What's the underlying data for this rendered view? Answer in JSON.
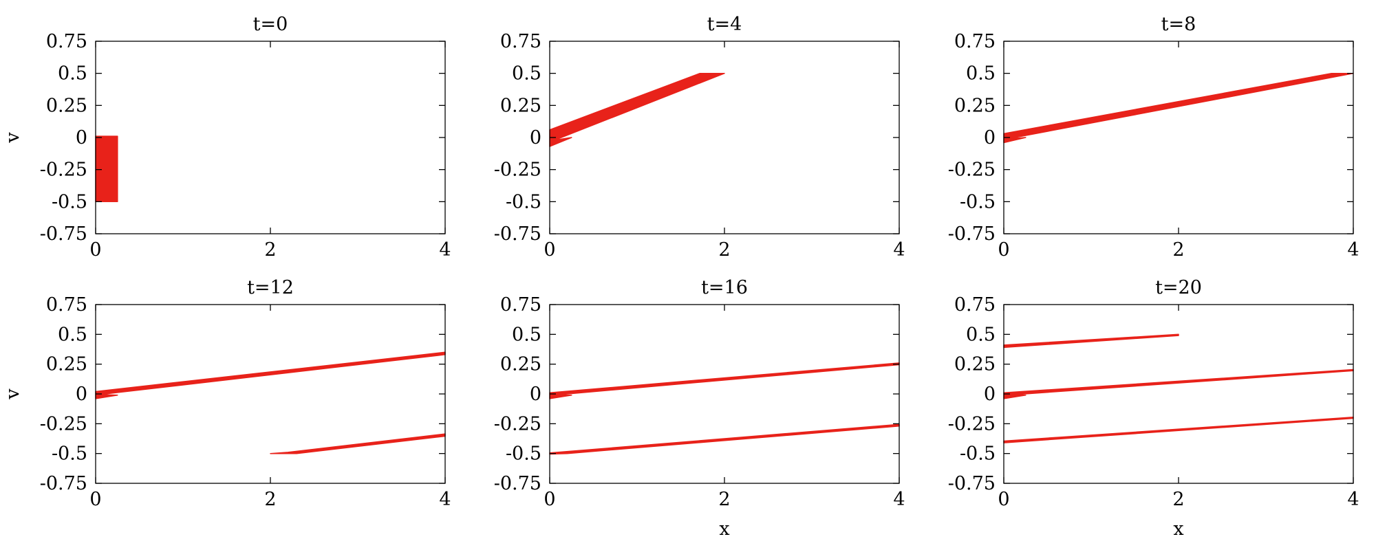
{
  "figure": {
    "series_color": "#e8221a"
  },
  "chart_data": [
    {
      "type": "area",
      "title": "t=0",
      "xlabel": "",
      "ylabel": "v",
      "xlim": [
        0,
        4
      ],
      "ylim": [
        -0.75,
        0.75
      ],
      "xticks": [
        "0",
        "2",
        "4"
      ],
      "yticks": [
        "0.75",
        "0.5",
        "0.25",
        "0",
        "-0.25",
        "-0.5",
        "-0.75"
      ],
      "regions": [
        {
          "points": [
            [
              0,
              0.01
            ],
            [
              0.25,
              0.01
            ],
            [
              0.25,
              -0.5
            ],
            [
              0,
              -0.5
            ]
          ]
        }
      ]
    },
    {
      "type": "area",
      "title": "t=4",
      "xlabel": "",
      "ylabel": "",
      "xlim": [
        0,
        4
      ],
      "ylim": [
        -0.75,
        0.75
      ],
      "xticks": [
        "0",
        "2",
        "4"
      ],
      "yticks": [
        "0.75",
        "0.5",
        "0.25",
        "0",
        "-0.25",
        "-0.5",
        "-0.75"
      ],
      "regions": [
        {
          "points": [
            [
              0,
              -0.07
            ],
            [
              0.25,
              0.0
            ],
            [
              0.06,
              -0.02
            ],
            [
              2.0,
              0.5
            ],
            [
              1.72,
              0.5
            ],
            [
              0,
              0.06
            ]
          ]
        }
      ]
    },
    {
      "type": "area",
      "title": "t=8",
      "xlabel": "",
      "ylabel": "",
      "xlim": [
        0,
        4
      ],
      "ylim": [
        -0.75,
        0.75
      ],
      "xticks": [
        "0",
        "2",
        "4"
      ],
      "yticks": [
        "0.75",
        "0.5",
        "0.25",
        "0",
        "-0.25",
        "-0.5",
        "-0.75"
      ],
      "regions": [
        {
          "points": [
            [
              0,
              -0.04
            ],
            [
              0.25,
              0.0
            ],
            [
              0.05,
              -0.01
            ],
            [
              4.0,
              0.5
            ],
            [
              3.75,
              0.5
            ],
            [
              0,
              0.03
            ]
          ]
        }
      ]
    },
    {
      "type": "area",
      "title": "t=12",
      "xlabel": "",
      "ylabel": "v",
      "xlim": [
        0,
        4
      ],
      "ylim": [
        -0.75,
        0.75
      ],
      "xticks": [
        "0",
        "2",
        "4"
      ],
      "yticks": [
        "0.75",
        "0.5",
        "0.25",
        "0",
        "-0.25",
        "-0.5",
        "-0.75"
      ],
      "regions": [
        {
          "points": [
            [
              0,
              -0.04
            ],
            [
              0.25,
              -0.01
            ],
            [
              0.05,
              -0.005
            ],
            [
              4.0,
              0.33
            ],
            [
              4.0,
              0.35
            ],
            [
              0,
              0.02
            ]
          ]
        },
        {
          "points": [
            [
              2.0,
              -0.5
            ],
            [
              2.3,
              -0.5
            ],
            [
              4.0,
              -0.355
            ],
            [
              4.0,
              -0.335
            ],
            [
              2.2,
              -0.49
            ]
          ]
        }
      ]
    },
    {
      "type": "area",
      "title": "t=16",
      "xlabel": "x",
      "ylabel": "",
      "xlim": [
        0,
        4
      ],
      "ylim": [
        -0.75,
        0.75
      ],
      "xticks": [
        "0",
        "2",
        "4"
      ],
      "yticks": [
        "0.75",
        "0.5",
        "0.25",
        "0",
        "-0.25",
        "-0.5",
        "-0.75"
      ],
      "regions": [
        {
          "points": [
            [
              0,
              -0.04
            ],
            [
              0.25,
              -0.01
            ],
            [
              0.05,
              -0.01
            ],
            [
              4.0,
              0.245
            ],
            [
              4.0,
              0.26
            ],
            [
              0,
              0.01
            ]
          ]
        },
        {
          "points": [
            [
              0,
              -0.505
            ],
            [
              0.2,
              -0.5
            ],
            [
              4.0,
              -0.27
            ],
            [
              4.0,
              -0.255
            ],
            [
              0,
              -0.495
            ]
          ]
        }
      ]
    },
    {
      "type": "area",
      "title": "t=20",
      "xlabel": "x",
      "ylabel": "",
      "xlim": [
        0,
        4
      ],
      "ylim": [
        -0.75,
        0.75
      ],
      "xticks": [
        "0",
        "2",
        "4"
      ],
      "yticks": [
        "0.75",
        "0.5",
        "0.25",
        "0",
        "-0.25",
        "-0.5",
        "-0.75"
      ],
      "regions": [
        {
          "points": [
            [
              0,
              0.39
            ],
            [
              2.0,
              0.49
            ],
            [
              2.0,
              0.5
            ],
            [
              0,
              0.41
            ]
          ]
        },
        {
          "points": [
            [
              0,
              -0.04
            ],
            [
              0.25,
              -0.01
            ],
            [
              0.05,
              -0.01
            ],
            [
              4.0,
              0.195
            ],
            [
              4.0,
              0.205
            ],
            [
              0,
              0.01
            ]
          ]
        },
        {
          "points": [
            [
              0,
              -0.41
            ],
            [
              4.0,
              -0.205
            ],
            [
              4.0,
              -0.195
            ],
            [
              0,
              -0.395
            ]
          ]
        }
      ]
    }
  ]
}
